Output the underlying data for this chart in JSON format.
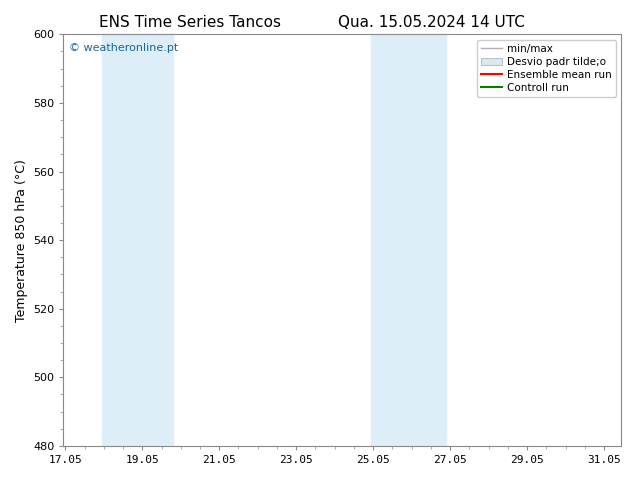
{
  "title_left": "ENS Time Series Tancos",
  "title_right": "Qua. 15.05.2024 14 UTC",
  "ylabel": "Temperature 850 hPa (°C)",
  "xlim": [
    17.0,
    31.5
  ],
  "ylim": [
    480,
    600
  ],
  "yticks": [
    480,
    500,
    520,
    540,
    560,
    580,
    600
  ],
  "xticks": [
    17.05,
    19.05,
    21.05,
    23.05,
    25.05,
    27.05,
    29.05,
    31.05
  ],
  "xticklabels": [
    "17.05",
    "19.05",
    "21.05",
    "23.05",
    "25.05",
    "27.05",
    "29.05",
    "31.05"
  ],
  "shaded_regions": [
    {
      "xmin": 18.0,
      "xmax": 19.85,
      "color": "#ddeef8"
    },
    {
      "xmin": 25.0,
      "xmax": 26.95,
      "color": "#ddeef8"
    }
  ],
  "bg_color": "#ffffff",
  "watermark_text": "© weatheronline.pt",
  "watermark_color": "#1a6699",
  "legend_entries": [
    {
      "label": "min/max",
      "color": "#b0b0b0",
      "lw": 1.0,
      "style": "-",
      "type": "line"
    },
    {
      "label": "Desvio padr tilde;o",
      "color": "#d8e8f0",
      "lw": 6,
      "style": "-",
      "type": "band"
    },
    {
      "label": "Ensemble mean run",
      "color": "#ff0000",
      "lw": 1.5,
      "style": "-",
      "type": "line"
    },
    {
      "label": "Controll run",
      "color": "#008000",
      "lw": 1.5,
      "style": "-",
      "type": "line"
    }
  ],
  "title_fontsize": 11,
  "axis_label_fontsize": 9,
  "tick_fontsize": 8,
  "legend_fontsize": 7.5,
  "spine_color": "#888888"
}
